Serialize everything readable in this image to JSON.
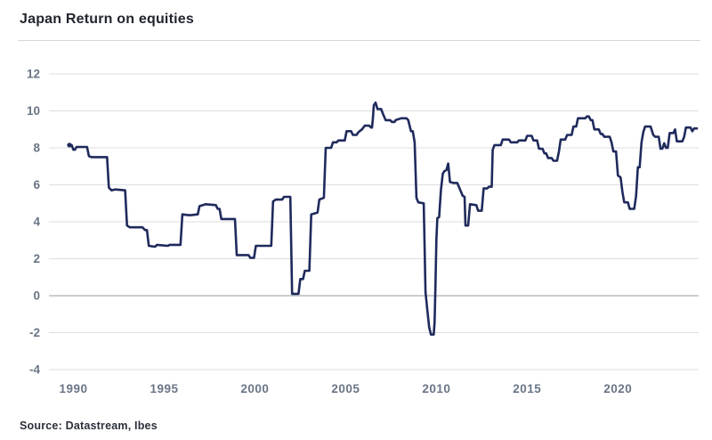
{
  "header": {
    "title": "Japan Return on equities"
  },
  "footer": {
    "source": "Source: Datastream, Ibes"
  },
  "colors": {
    "line": "#1f2a5c",
    "grid": "#dcdee1",
    "zero_line": "#b9bec5",
    "axis_label": "#6a7586",
    "title": "#21252f",
    "source_text": "#2b303a",
    "background": "#ffffff"
  },
  "chart_data": {
    "type": "line",
    "title": "Japan Return on equities",
    "source": "Source: Datastream, Ibes",
    "xlabel": "",
    "ylabel": "",
    "legend": "none",
    "grid": "horizontal",
    "xlim": [
      1988.65,
      2024.45
    ],
    "ylim": [
      -4,
      12
    ],
    "x_ticks": [
      1990,
      1995,
      2000,
      2005,
      2010,
      2015,
      2020
    ],
    "y_ticks": [
      -4,
      -2,
      0,
      2,
      4,
      6,
      8,
      10,
      12
    ],
    "series": [
      {
        "name": "Japan return on equities (%)",
        "x": [
          1989.78,
          1989.9,
          1990.0,
          1990.08,
          1990.17,
          1990.75,
          1990.85,
          1991.0,
          1991.85,
          1991.95,
          1992.1,
          1992.3,
          1992.85,
          1992.95,
          1993.1,
          1993.8,
          1993.95,
          1994.05,
          1994.15,
          1994.5,
          1994.6,
          1995.2,
          1995.3,
          1995.9,
          1996.0,
          1996.4,
          1996.85,
          1996.95,
          1997.3,
          1997.85,
          1997.95,
          1998.05,
          1998.15,
          1998.9,
          1999.0,
          1999.65,
          1999.75,
          1999.95,
          2000.05,
          2000.9,
          2001.0,
          2001.15,
          2001.5,
          2001.6,
          2001.95,
          2002.05,
          2002.4,
          2002.5,
          2002.65,
          2002.75,
          2003.0,
          2003.1,
          2003.45,
          2003.55,
          2003.8,
          2003.9,
          2004.2,
          2004.3,
          2004.5,
          2004.6,
          2004.95,
          2005.05,
          2005.3,
          2005.4,
          2005.6,
          2005.7,
          2005.9,
          2006.05,
          2006.3,
          2006.4,
          2006.45,
          2006.5,
          2006.55,
          2006.65,
          2006.75,
          2006.95,
          2007.05,
          2007.2,
          2007.45,
          2007.55,
          2007.7,
          2007.75,
          2008.05,
          2008.35,
          2008.45,
          2008.6,
          2008.7,
          2008.8,
          2008.9,
          2009.0,
          2009.3,
          2009.4,
          2009.5,
          2009.6,
          2009.7,
          2009.85,
          2009.9,
          2009.95,
          2010.0,
          2010.05,
          2010.15,
          2010.25,
          2010.35,
          2010.45,
          2010.55,
          2010.65,
          2010.75,
          2010.95,
          2011.15,
          2011.3,
          2011.45,
          2011.55,
          2011.6,
          2011.75,
          2011.85,
          2012.2,
          2012.3,
          2012.5,
          2012.6,
          2012.8,
          2012.9,
          2013.05,
          2013.1,
          2013.2,
          2013.55,
          2013.65,
          2014.0,
          2014.1,
          2014.45,
          2014.55,
          2014.9,
          2015.0,
          2015.25,
          2015.35,
          2015.55,
          2015.65,
          2015.85,
          2015.95,
          2016.05,
          2016.15,
          2016.35,
          2016.45,
          2016.65,
          2016.75,
          2016.85,
          2017.1,
          2017.2,
          2017.45,
          2017.55,
          2017.7,
          2017.8,
          2018.2,
          2018.3,
          2018.4,
          2018.5,
          2018.6,
          2018.7,
          2018.95,
          2019.05,
          2019.15,
          2019.25,
          2019.55,
          2019.65,
          2019.75,
          2019.9,
          2020.0,
          2020.15,
          2020.25,
          2020.35,
          2020.55,
          2020.65,
          2020.9,
          2021.0,
          2021.1,
          2021.2,
          2021.3,
          2021.4,
          2021.5,
          2021.8,
          2021.95,
          2022.05,
          2022.25,
          2022.35,
          2022.45,
          2022.55,
          2022.65,
          2022.75,
          2022.85,
          2023.05,
          2023.15,
          2023.25,
          2023.55,
          2023.65,
          2023.75,
          2024.0,
          2024.1,
          2024.2,
          2024.35
        ],
        "y": [
          8.15,
          8.15,
          7.9,
          7.9,
          8.05,
          8.05,
          7.55,
          7.5,
          7.5,
          5.85,
          5.7,
          5.75,
          5.7,
          3.8,
          3.7,
          3.7,
          3.55,
          3.55,
          2.7,
          2.65,
          2.75,
          2.7,
          2.75,
          2.75,
          4.4,
          4.35,
          4.4,
          4.85,
          4.95,
          4.9,
          4.7,
          4.7,
          4.15,
          4.15,
          2.2,
          2.2,
          2.05,
          2.05,
          2.7,
          2.7,
          5.1,
          5.2,
          5.2,
          5.35,
          5.35,
          0.1,
          0.1,
          0.9,
          0.9,
          1.35,
          1.35,
          4.4,
          4.5,
          5.2,
          5.3,
          8.0,
          8.0,
          8.3,
          8.3,
          8.4,
          8.4,
          8.9,
          8.9,
          8.7,
          8.7,
          8.85,
          9.0,
          9.2,
          9.2,
          9.1,
          9.1,
          9.6,
          10.3,
          10.45,
          10.1,
          10.1,
          9.85,
          9.5,
          9.5,
          9.4,
          9.4,
          9.5,
          9.6,
          9.6,
          9.5,
          8.9,
          8.9,
          8.3,
          5.3,
          5.05,
          5.0,
          0.2,
          -0.8,
          -1.7,
          -2.1,
          -2.1,
          -1.45,
          0.6,
          3.0,
          4.2,
          4.25,
          5.7,
          6.6,
          6.75,
          6.8,
          7.15,
          6.15,
          6.1,
          6.1,
          5.75,
          5.4,
          5.35,
          3.8,
          3.8,
          4.95,
          4.9,
          4.6,
          4.6,
          5.8,
          5.8,
          5.9,
          5.9,
          7.9,
          8.15,
          8.15,
          8.45,
          8.45,
          8.3,
          8.3,
          8.4,
          8.4,
          8.65,
          8.65,
          8.4,
          8.4,
          7.95,
          7.95,
          7.7,
          7.7,
          7.45,
          7.45,
          7.3,
          7.3,
          7.8,
          8.45,
          8.45,
          8.7,
          8.7,
          9.15,
          9.15,
          9.6,
          9.6,
          9.7,
          9.7,
          9.5,
          9.5,
          9.0,
          9.0,
          8.75,
          8.75,
          8.6,
          8.6,
          8.3,
          7.8,
          7.8,
          6.5,
          6.4,
          5.6,
          5.05,
          5.05,
          4.7,
          4.7,
          5.4,
          6.95,
          6.95,
          8.3,
          8.85,
          9.15,
          9.15,
          8.7,
          8.6,
          8.6,
          7.95,
          7.95,
          8.25,
          8.0,
          8.0,
          8.8,
          8.8,
          9.0,
          8.35,
          8.35,
          8.6,
          9.1,
          9.1,
          8.9,
          9.05,
          9.05
        ]
      }
    ]
  }
}
